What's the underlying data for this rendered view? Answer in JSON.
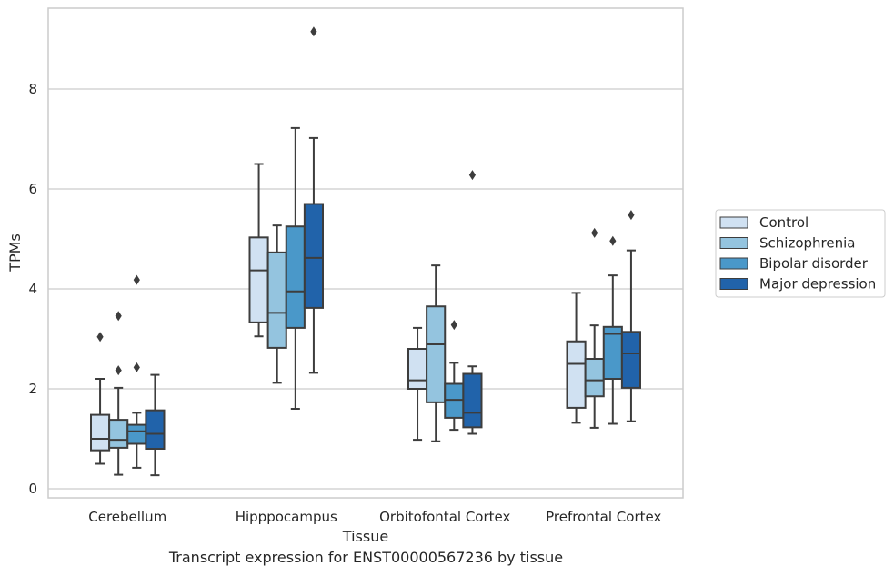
{
  "caption": "Transcript expression for ENST00000567236 by tissue",
  "chart_data": {
    "type": "boxplot",
    "xlabel": "Tissue",
    "ylabel": "TPMs",
    "ylim": [
      -0.18,
      9.6
    ],
    "yticks": [
      0,
      2,
      4,
      6,
      8
    ],
    "grid": "horizontal",
    "legend_position": "right",
    "categories": [
      "Cerebellum",
      "Hipppocampus",
      "Orbitofontal Cortex",
      "Prefrontal Cortex"
    ],
    "series": [
      {
        "name": "Control",
        "color": "#d0e1f2",
        "boxes": [
          {
            "whisker_low": 0.5,
            "q1": 0.77,
            "median": 1.0,
            "q3": 1.48,
            "whisker_high": 2.2,
            "outliers": [
              3.04
            ]
          },
          {
            "whisker_low": 3.05,
            "q1": 3.33,
            "median": 4.37,
            "q3": 5.03,
            "whisker_high": 6.5,
            "outliers": []
          },
          {
            "whisker_low": 0.98,
            "q1": 2.0,
            "median": 2.17,
            "q3": 2.8,
            "whisker_high": 3.22,
            "outliers": []
          },
          {
            "whisker_low": 1.32,
            "q1": 1.62,
            "median": 2.5,
            "q3": 2.95,
            "whisker_high": 3.92,
            "outliers": []
          }
        ]
      },
      {
        "name": "Schizophrenia",
        "color": "#94c4df",
        "boxes": [
          {
            "whisker_low": 0.28,
            "q1": 0.82,
            "median": 0.98,
            "q3": 1.38,
            "whisker_high": 2.02,
            "outliers": [
              2.37,
              3.46
            ]
          },
          {
            "whisker_low": 2.12,
            "q1": 2.82,
            "median": 3.52,
            "q3": 4.73,
            "whisker_high": 5.27,
            "outliers": []
          },
          {
            "whisker_low": 0.95,
            "q1": 1.73,
            "median": 2.89,
            "q3": 3.65,
            "whisker_high": 4.47,
            "outliers": []
          },
          {
            "whisker_low": 1.22,
            "q1": 1.85,
            "median": 2.17,
            "q3": 2.6,
            "whisker_high": 3.27,
            "outliers": [
              5.12
            ]
          }
        ]
      },
      {
        "name": "Bipolar disorder",
        "color": "#4a98c9",
        "boxes": [
          {
            "whisker_low": 0.42,
            "q1": 0.9,
            "median": 1.15,
            "q3": 1.28,
            "whisker_high": 1.52,
            "outliers": [
              2.43,
              4.18
            ]
          },
          {
            "whisker_low": 1.6,
            "q1": 3.22,
            "median": 3.95,
            "q3": 5.25,
            "whisker_high": 7.22,
            "outliers": []
          },
          {
            "whisker_low": 1.18,
            "q1": 1.42,
            "median": 1.78,
            "q3": 2.1,
            "whisker_high": 2.52,
            "outliers": [
              3.28
            ]
          },
          {
            "whisker_low": 1.3,
            "q1": 2.2,
            "median": 3.1,
            "q3": 3.24,
            "whisker_high": 4.27,
            "outliers": [
              4.96
            ]
          }
        ]
      },
      {
        "name": "Major depression",
        "color": "#2163aa",
        "boxes": [
          {
            "whisker_low": 0.27,
            "q1": 0.8,
            "median": 1.1,
            "q3": 1.57,
            "whisker_high": 2.28,
            "outliers": []
          },
          {
            "whisker_low": 2.32,
            "q1": 3.62,
            "median": 4.62,
            "q3": 5.7,
            "whisker_high": 7.02,
            "outliers": [
              9.15
            ]
          },
          {
            "whisker_low": 1.1,
            "q1": 1.23,
            "median": 1.52,
            "q3": 2.3,
            "whisker_high": 2.45,
            "outliers": [
              6.28
            ]
          },
          {
            "whisker_low": 1.35,
            "q1": 2.02,
            "median": 2.71,
            "q3": 3.14,
            "whisker_high": 4.77,
            "outliers": [
              5.48
            ]
          }
        ]
      }
    ]
  }
}
